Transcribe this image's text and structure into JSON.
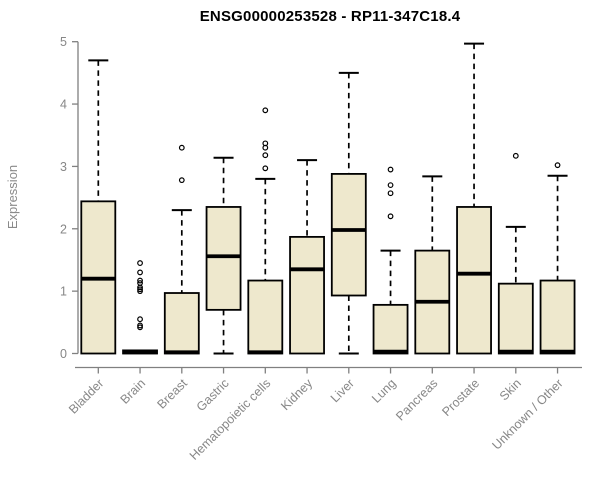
{
  "chart_data": {
    "type": "box",
    "title": "ENSG00000253528 - RP11-347C18.4",
    "ylabel": "Expression",
    "xlabel": "",
    "ylim": [
      0,
      5
    ],
    "yticks": [
      0,
      1,
      2,
      3,
      4,
      5
    ],
    "grid": false,
    "legend": false,
    "categories": [
      "Bladder",
      "Brain",
      "Breast",
      "Gastric",
      "Hematopoietic cells",
      "Kidney",
      "Liver",
      "Lung",
      "Pancreas",
      "Prostate",
      "Skin",
      "Unknown / Other"
    ],
    "series": [
      {
        "name": "Bladder",
        "whisker_low": 0,
        "q1": 0,
        "median": 1.2,
        "q3": 2.44,
        "whisker_high": 4.7,
        "outliers": []
      },
      {
        "name": "Brain",
        "whisker_low": 0,
        "q1": 0,
        "median": 0.02,
        "q3": 0.05,
        "whisker_high": 0.05,
        "outliers": [
          0.42,
          0.45,
          0.55,
          1.0,
          1.03,
          1.06,
          1.13,
          1.17,
          1.3,
          1.45
        ]
      },
      {
        "name": "Breast",
        "whisker_low": 0,
        "q1": 0,
        "median": 0.02,
        "q3": 0.97,
        "whisker_high": 2.3,
        "outliers": [
          2.78,
          3.3
        ]
      },
      {
        "name": "Gastric",
        "whisker_low": 0,
        "q1": 0.7,
        "median": 1.56,
        "q3": 2.35,
        "whisker_high": 3.14,
        "outliers": []
      },
      {
        "name": "Hematopoietic cells",
        "whisker_low": 0,
        "q1": 0,
        "median": 0.02,
        "q3": 1.17,
        "whisker_high": 2.8,
        "outliers": [
          2.97,
          3.18,
          3.3,
          3.37,
          3.9
        ]
      },
      {
        "name": "Kidney",
        "whisker_low": 0,
        "q1": 0,
        "median": 1.35,
        "q3": 1.87,
        "whisker_high": 3.1,
        "outliers": []
      },
      {
        "name": "Liver",
        "whisker_low": 0,
        "q1": 0.93,
        "median": 1.98,
        "q3": 2.88,
        "whisker_high": 4.5,
        "outliers": []
      },
      {
        "name": "Lung",
        "whisker_low": 0,
        "q1": 0,
        "median": 0.03,
        "q3": 0.78,
        "whisker_high": 1.65,
        "outliers": [
          2.2,
          2.57,
          2.7,
          2.95
        ]
      },
      {
        "name": "Pancreas",
        "whisker_low": 0,
        "q1": 0,
        "median": 0.83,
        "q3": 1.65,
        "whisker_high": 2.84,
        "outliers": []
      },
      {
        "name": "Prostate",
        "whisker_low": 0,
        "q1": 0,
        "median": 1.28,
        "q3": 2.35,
        "whisker_high": 4.97,
        "outliers": []
      },
      {
        "name": "Skin",
        "whisker_low": 0,
        "q1": 0,
        "median": 0.03,
        "q3": 1.12,
        "whisker_high": 2.03,
        "outliers": [
          3.17
        ]
      },
      {
        "name": "Unknown / Other",
        "whisker_low": 0,
        "q1": 0,
        "median": 0.03,
        "q3": 1.17,
        "whisker_high": 2.85,
        "outliers": [
          3.02
        ]
      }
    ],
    "colors": {
      "box_fill": "#EEE8CD",
      "box_border": "#000000",
      "median": "#000000",
      "whisker": "#000000",
      "outlier": "#000000",
      "axis": "#808080",
      "tick_labels": "#878787",
      "title": "#000000"
    }
  }
}
